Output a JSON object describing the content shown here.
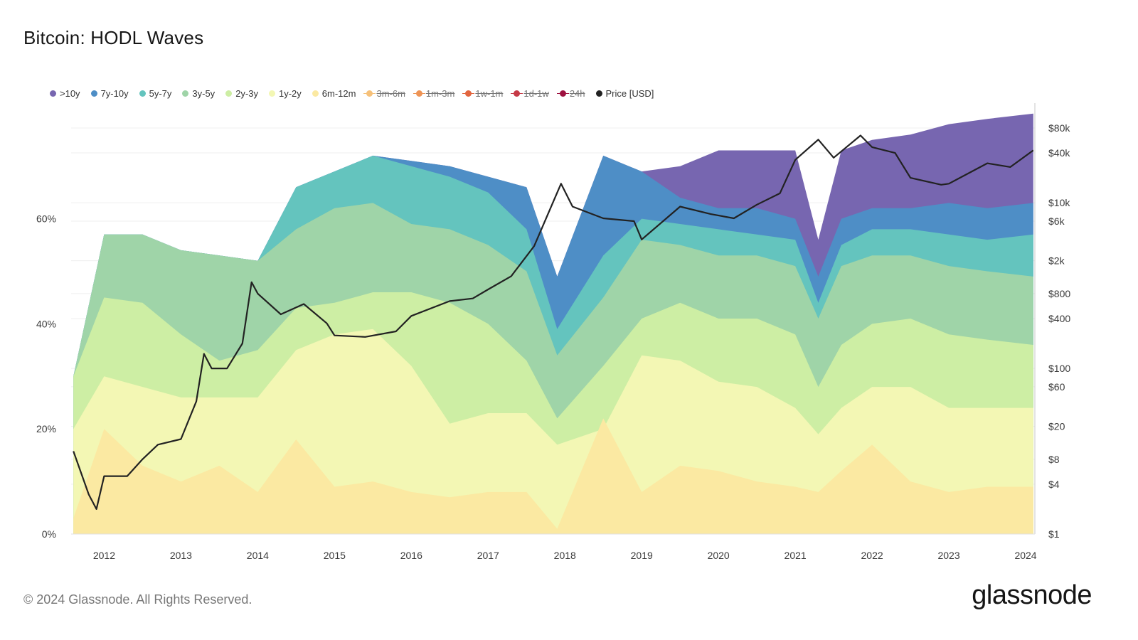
{
  "title": "Bitcoin: HODL Waves",
  "footer": "© 2024 Glassnode. All Rights Reserved.",
  "brand": "glassnode",
  "legend": [
    {
      "label": ">10y",
      "color": "#7766b0",
      "hidden": false
    },
    {
      "label": "7y-10y",
      "color": "#4e8ec6",
      "hidden": false
    },
    {
      "label": "5y-7y",
      "color": "#64c4be",
      "hidden": false
    },
    {
      "label": "3y-5y",
      "color": "#9fd4a8",
      "hidden": false
    },
    {
      "label": "2y-3y",
      "color": "#cdeea4",
      "hidden": false
    },
    {
      "label": "1y-2y",
      "color": "#f3f7b4",
      "hidden": false
    },
    {
      "label": "6m-12m",
      "color": "#fbe9a2",
      "hidden": false
    },
    {
      "label": "3m-6m",
      "color": "#f6c17a",
      "hidden": true
    },
    {
      "label": "1m-3m",
      "color": "#ee9455",
      "hidden": true
    },
    {
      "label": "1w-1m",
      "color": "#e2663f",
      "hidden": true
    },
    {
      "label": "1d-1w",
      "color": "#c63a47",
      "hidden": true
    },
    {
      "label": "24h",
      "color": "#9e1140",
      "hidden": true
    },
    {
      "label": "Price [USD]",
      "color": "#222222",
      "hidden": false
    }
  ],
  "chart_data": {
    "type": "area",
    "stacked": true,
    "x_tick_labels": [
      "2012",
      "2013",
      "2014",
      "2015",
      "2016",
      "2017",
      "2018",
      "2019",
      "2020",
      "2021",
      "2022",
      "2023",
      "2024"
    ],
    "y_left_tick_labels": [
      "0%",
      "20%",
      "40%",
      "60%"
    ],
    "y_left_ticks": [
      0,
      20,
      40,
      60
    ],
    "y_right_tick_labels": [
      "$1",
      "$4",
      "$8",
      "$20",
      "$60",
      "$100",
      "$400",
      "$800",
      "$2k",
      "$6k",
      "$10k",
      "$40k",
      "$80k"
    ],
    "y_right_ticks": [
      1,
      4,
      8,
      20,
      60,
      100,
      400,
      800,
      2000,
      6000,
      10000,
      40000,
      80000
    ],
    "x_range": [
      2011.57,
      2024.12
    ],
    "y_left_range": [
      0,
      82
    ],
    "y_right_range": [
      1,
      80000
    ],
    "y_right_scale": "log",
    "x": [
      2011.6,
      2012.0,
      2012.5,
      2013.0,
      2013.5,
      2014.0,
      2014.5,
      2015.0,
      2015.5,
      2016.0,
      2016.5,
      2017.0,
      2017.5,
      2017.9,
      2018.5,
      2019.0,
      2019.5,
      2020.0,
      2020.5,
      2021.0,
      2021.3,
      2021.6,
      2022.0,
      2022.5,
      2023.0,
      2023.5,
      2024.1
    ],
    "cumulative_series": [
      {
        "name": "6m-12m",
        "values": [
          3,
          20,
          13,
          10,
          13,
          8,
          18,
          9,
          10,
          8,
          7,
          8,
          8,
          1,
          22,
          8,
          13,
          12,
          10,
          9,
          8,
          12,
          17,
          10,
          8,
          9,
          9
        ]
      },
      {
        "name": "1y-2y",
        "values": [
          20,
          30,
          28,
          26,
          26,
          26,
          35,
          38,
          39,
          32,
          21,
          23,
          23,
          17,
          20,
          34,
          33,
          29,
          28,
          24,
          19,
          24,
          28,
          28,
          24,
          24,
          24
        ]
      },
      {
        "name": "2y-3y",
        "values": [
          30,
          45,
          44,
          38,
          33,
          35,
          43,
          44,
          46,
          46,
          44,
          40,
          33,
          22,
          32,
          41,
          44,
          41,
          41,
          38,
          28,
          36,
          40,
          41,
          38,
          37,
          36
        ]
      },
      {
        "name": "3y-5y",
        "values": [
          30,
          57,
          57,
          54,
          53,
          52,
          58,
          62,
          63,
          59,
          58,
          55,
          50,
          34,
          45,
          56,
          55,
          53,
          53,
          51,
          41,
          51,
          53,
          53,
          51,
          50,
          49
        ]
      },
      {
        "name": "5y-7y",
        "values": [
          30,
          57,
          57,
          54,
          53,
          52,
          66,
          69,
          72,
          70,
          68,
          65,
          58,
          39,
          53,
          60,
          59,
          58,
          57,
          56,
          44,
          55,
          58,
          58,
          57,
          56,
          57
        ]
      },
      {
        "name": "7y-10y",
        "values": [
          30,
          57,
          57,
          54,
          53,
          52,
          66,
          69,
          72,
          71,
          70,
          68,
          66,
          49,
          72,
          69,
          64,
          62,
          62,
          60,
          49,
          60,
          62,
          62,
          63,
          62,
          63
        ]
      },
      {
        "name": ">10y",
        "values": [
          30,
          57,
          57,
          54,
          53,
          52,
          66,
          69,
          72,
          71,
          70,
          68,
          66,
          49,
          72,
          69,
          70,
          73,
          73,
          73,
          56,
          73,
          75,
          76,
          78,
          79,
          80
        ]
      }
    ],
    "price_series": {
      "name": "Price [USD]",
      "x": [
        2011.6,
        2011.8,
        2011.9,
        2012.0,
        2012.3,
        2012.5,
        2012.7,
        2013.0,
        2013.2,
        2013.3,
        2013.4,
        2013.6,
        2013.8,
        2013.92,
        2014.0,
        2014.3,
        2014.6,
        2014.9,
        2015.0,
        2015.4,
        2015.8,
        2016.0,
        2016.5,
        2016.8,
        2017.0,
        2017.3,
        2017.6,
        2017.95,
        2018.1,
        2018.5,
        2018.9,
        2019.0,
        2019.5,
        2019.9,
        2020.2,
        2020.5,
        2020.8,
        2021.0,
        2021.3,
        2021.5,
        2021.85,
        2022.0,
        2022.3,
        2022.5,
        2022.9,
        2023.0,
        2023.5,
        2023.8,
        2024.1
      ],
      "values": [
        10,
        3,
        2,
        5,
        5,
        8,
        12,
        14,
        40,
        150,
        100,
        100,
        200,
        1100,
        800,
        450,
        600,
        350,
        250,
        240,
        280,
        430,
        650,
        700,
        900,
        1300,
        3000,
        17000,
        9000,
        6500,
        6000,
        3600,
        9000,
        7300,
        6500,
        9500,
        13000,
        33000,
        58000,
        35000,
        65000,
        47000,
        40000,
        20000,
        16500,
        17000,
        30000,
        27000,
        43000
      ]
    }
  }
}
